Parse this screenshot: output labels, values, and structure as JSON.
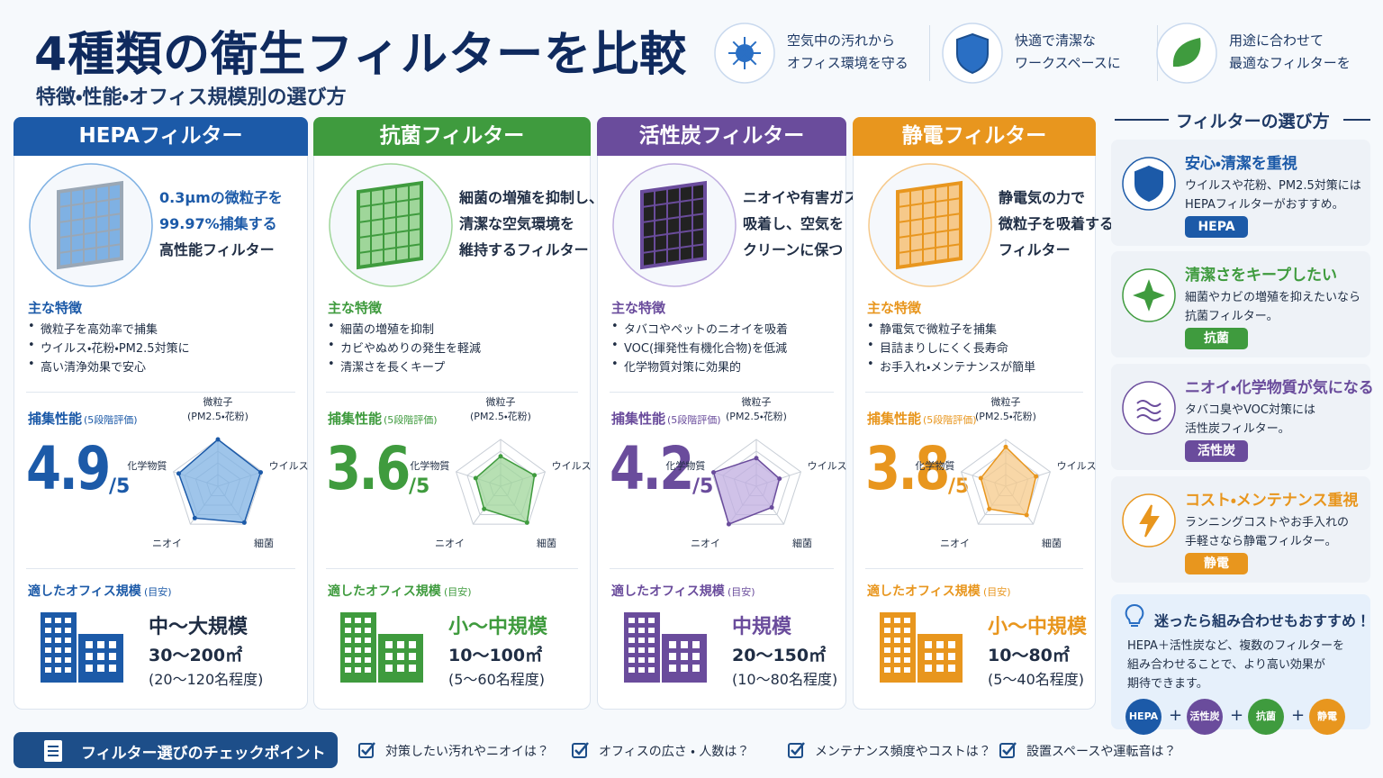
{
  "header": {
    "title": "4種類の衛生フィルターを比較",
    "subtitle": "特徴・性能・オフィス規模別の選び方"
  },
  "badges": [
    {
      "lines": [
        "空気中の汚れから",
        "オフィス環境を守る"
      ]
    },
    {
      "lines": [
        "快適で清潔な",
        "ワークスペースに"
      ]
    },
    {
      "lines": [
        "用途に合わせて",
        "最適なフィルターを"
      ]
    }
  ],
  "labels": {
    "features": "主な特徴",
    "perf": "捕集性能",
    "perf_note": "(5段階評価)",
    "score_unit": "/5",
    "size": "適したオフィス規模",
    "size_note": "(目安)",
    "radar_axes": [
      [
        "微粒子",
        "(PM2.5・花粉)"
      ],
      [
        "ウイルス"
      ],
      [
        "細菌"
      ],
      [
        "ニオイ"
      ],
      [
        "化学物質"
      ]
    ],
    "radar_max": 5
  },
  "filters": [
    {
      "name": "HEPAフィルター",
      "color": "#1c5aa8",
      "light": "#7fb1e3",
      "desc": [
        "0.3μmの微粒子を",
        "99.97%捕集する",
        "高性能フィルター"
      ],
      "features": [
        "微粒子を高効率で捕集",
        "ウイルス・花粉・PM2.5対策に",
        "高い清浄効果で安心"
      ],
      "score": 4.9,
      "radar": [
        5,
        4.8,
        4.8,
        4.2,
        4.4
      ],
      "size_name": "中〜大規模",
      "area": "30〜200㎡",
      "people": "(20〜120名程度)"
    },
    {
      "name": "抗菌フィルター",
      "color": "#3f9b3e",
      "light": "#9fd69a",
      "desc": [
        "細菌の増殖を抑制し、",
        "清潔な空気環境を",
        "維持するフィルター"
      ],
      "features": [
        "細菌の増殖を抑制",
        "カビやぬめりの発生を軽減",
        "清潔さを長くキープ"
      ],
      "score": 3.6,
      "radar": [
        3.2,
        3.8,
        4.8,
        3,
        2.8
      ],
      "size_name": "小〜中規模",
      "area": "10〜100㎡",
      "people": "(5〜60名程度)"
    },
    {
      "name": "活性炭フィルター",
      "color": "#6a4c9c",
      "light": "#c0aee0",
      "desc": [
        "ニオイや有害ガスを",
        "吸着し、空気を",
        "クリーンに保つ"
      ],
      "features": [
        "タバコやペットのニオイを吸着",
        "VOC(揮発性有機化合物)を低減",
        "化学物質対策に効果的"
      ],
      "score": 4.2,
      "radar": [
        3,
        2.6,
        2.8,
        5,
        4.8
      ],
      "size_name": "中規模",
      "area": "20〜150㎡",
      "people": "(10〜80名程度)"
    },
    {
      "name": "静電フィルター",
      "color": "#e8961e",
      "light": "#f6c98a",
      "desc": [
        "静電気の力で",
        "微粒子を吸着する",
        "フィルター"
      ],
      "features": [
        "静電気で微粒子を捕集",
        "目詰まりしにくく長寿命",
        "お手入れ・メンテナンスが簡単"
      ],
      "score": 3.8,
      "radar": [
        4.2,
        3.4,
        3.8,
        3,
        2.8
      ],
      "size_name": "小〜中規模",
      "area": "10〜80㎡",
      "people": "(5〜40名程度)"
    }
  ],
  "guide": {
    "title": "フィルターの選び方",
    "items": [
      {
        "title": "安心・清潔を重視",
        "color": "#1c5aa8",
        "text": [
          "ウイルスや花粉、PM2.5対策には",
          "HEPAフィルターがおすすめ。"
        ],
        "tag": "HEPA"
      },
      {
        "title": "清潔さをキープしたい",
        "color": "#3f9b3e",
        "text": [
          "細菌やカビの増殖を抑えたいなら",
          "抗菌フィルター。"
        ],
        "tag": "抗菌"
      },
      {
        "title": "ニオイ・化学物質が気になる",
        "color": "#6a4c9c",
        "text": [
          "タバコ臭やVOC対策には",
          "活性炭フィルター。"
        ],
        "tag": "活性炭"
      },
      {
        "title": "コスト・メンテナンス重視",
        "color": "#e8961e",
        "text": [
          "ランニングコストやお手入れの",
          "手軽さなら静電フィルター。"
        ],
        "tag": "静電"
      }
    ],
    "combo": {
      "title": "迷ったら組み合わせもおすすめ！",
      "text": [
        "HEPA＋活性炭など、複数のフィルターを",
        "組み合わせることで、より高い効果が",
        "期待できます。"
      ],
      "chips": [
        "HEPA",
        "活性炭",
        "抗菌",
        "静電"
      ],
      "plus": "+"
    }
  },
  "checklist": {
    "title": "フィルター選びのチェックポイント",
    "items": [
      "対策したい汚れやニオイは？",
      "オフィスの広さ ・ 人数は？",
      "メンテナンス頻度やコストは？",
      "設置スペースや運転音は？"
    ]
  }
}
